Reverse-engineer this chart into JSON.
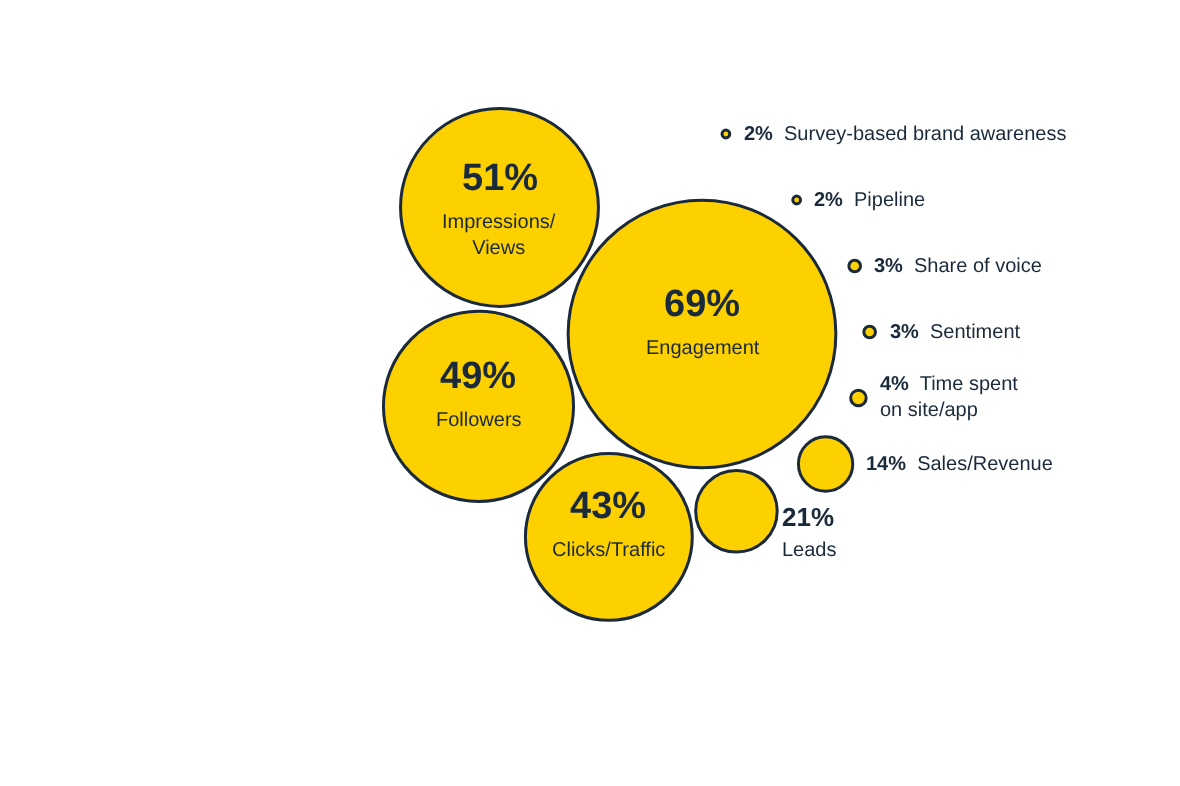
{
  "chart_data": {
    "type": "other",
    "color": "#fdd000",
    "categories": [
      "Impressions/\nViews",
      "Engagement",
      "Followers",
      "Clicks/Traffic",
      "Leads",
      "Sales/Revenue",
      "Time spent\non site/app",
      "Sentiment",
      "Share of voice",
      "Pipeline",
      "Survey-based brand awareness"
    ],
    "values": [
      51,
      69,
      49,
      43,
      21,
      14,
      4,
      3,
      3,
      2,
      2
    ],
    "value_labels": [
      "51%",
      "69%",
      "49%",
      "43%",
      "21%",
      "14%",
      "4%",
      "3%",
      "3%",
      "2%",
      "2%"
    ]
  }
}
